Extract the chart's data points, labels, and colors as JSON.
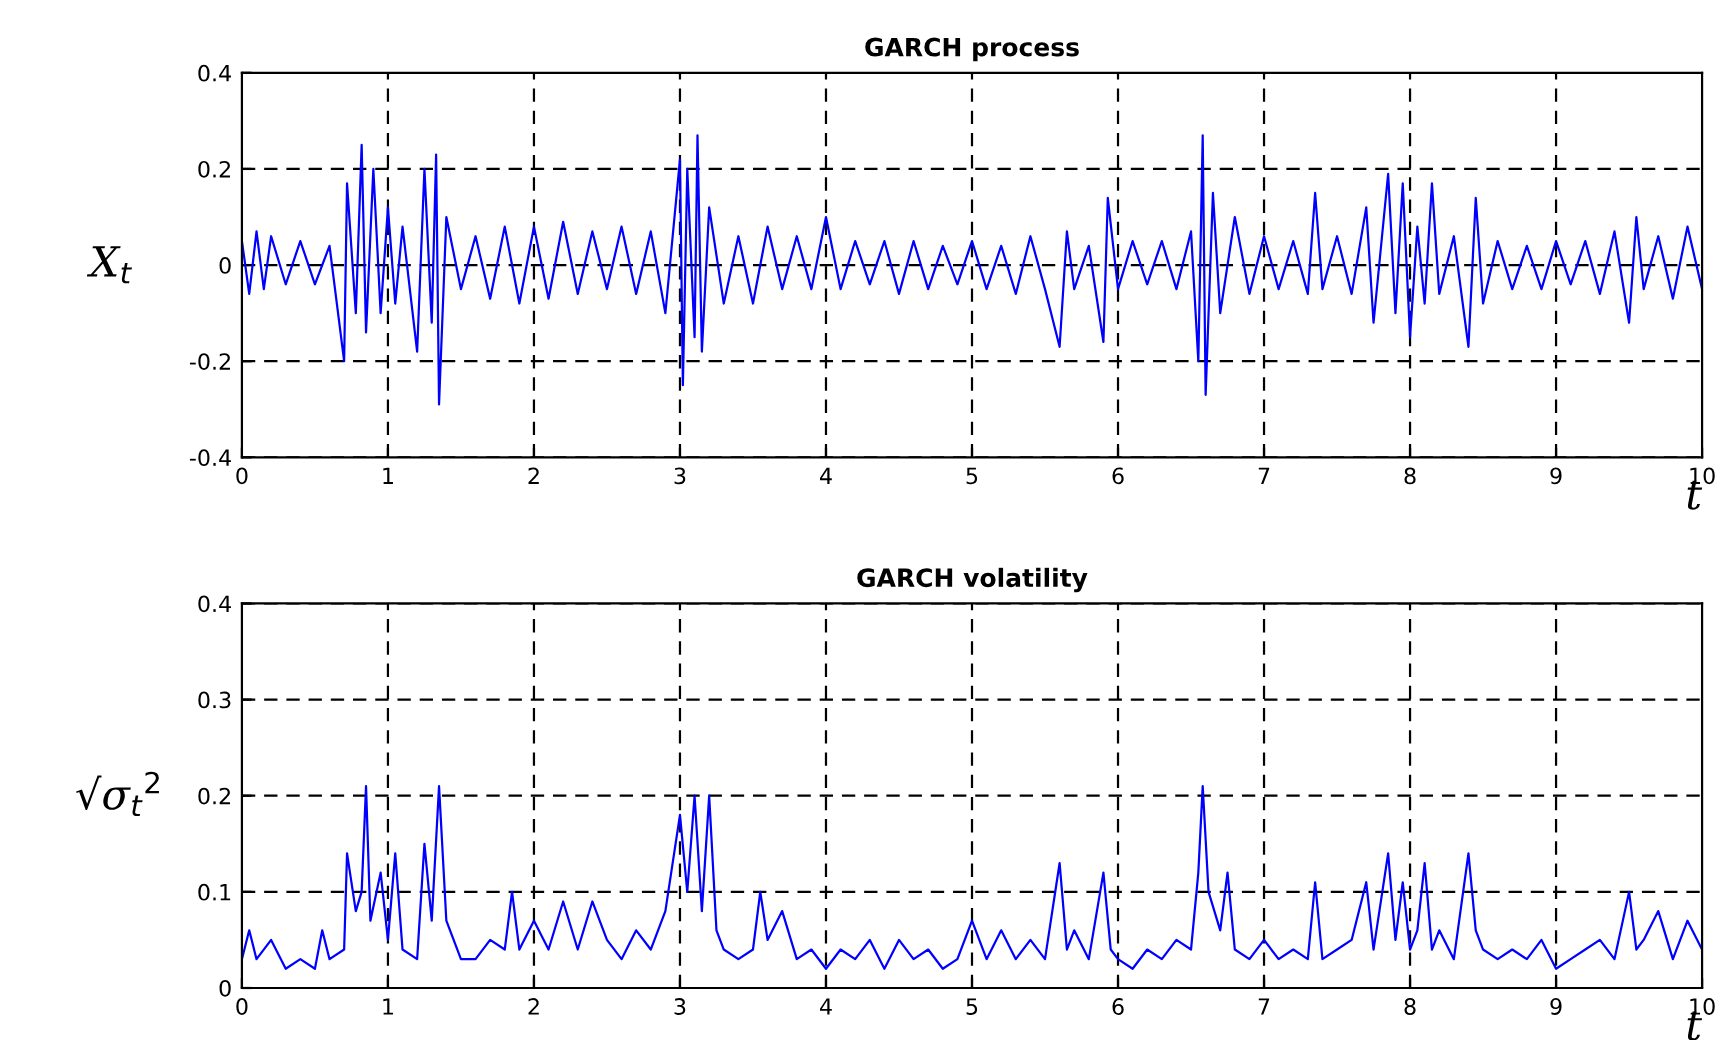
{
  "chart_data": [
    {
      "type": "line",
      "title": "GARCH process",
      "xlabel": "t",
      "ylabel": "X$_{t}$",
      "xlim": [
        0,
        10
      ],
      "xticks": [
        0,
        1,
        2,
        3,
        4,
        5,
        6,
        7,
        8,
        9,
        10
      ],
      "ylim": [
        -0.4,
        0.4
      ],
      "yticks": [
        -0.4,
        -0.2,
        0,
        0.2,
        0.4
      ],
      "grid": true,
      "line_style": "solid",
      "marker": "none",
      "series": [
        {
          "color": "#0000ff",
          "x": [
            0,
            0.05,
            0.1,
            0.15,
            0.2,
            0.3,
            0.4,
            0.5,
            0.6,
            0.7,
            0.72,
            0.78,
            0.82,
            0.85,
            0.9,
            0.95,
            1.0,
            1.05,
            1.1,
            1.2,
            1.25,
            1.3,
            1.33,
            1.35,
            1.4,
            1.5,
            1.6,
            1.7,
            1.8,
            1.9,
            2.0,
            2.1,
            2.2,
            2.3,
            2.4,
            2.5,
            2.6,
            2.7,
            2.8,
            2.9,
            3.0,
            3.02,
            3.05,
            3.1,
            3.12,
            3.15,
            3.2,
            3.3,
            3.4,
            3.5,
            3.6,
            3.7,
            3.8,
            3.9,
            4.0,
            4.1,
            4.2,
            4.3,
            4.4,
            4.5,
            4.6,
            4.7,
            4.8,
            4.9,
            5.0,
            5.1,
            5.2,
            5.3,
            5.4,
            5.5,
            5.6,
            5.65,
            5.7,
            5.8,
            5.9,
            5.93,
            6.0,
            6.1,
            6.2,
            6.3,
            6.4,
            6.5,
            6.55,
            6.58,
            6.6,
            6.65,
            6.7,
            6.8,
            6.9,
            7.0,
            7.1,
            7.2,
            7.3,
            7.35,
            7.4,
            7.5,
            7.6,
            7.7,
            7.75,
            7.85,
            7.9,
            7.95,
            8.0,
            8.05,
            8.1,
            8.15,
            8.2,
            8.3,
            8.4,
            8.45,
            8.5,
            8.6,
            8.7,
            8.8,
            8.9,
            9.0,
            9.1,
            9.2,
            9.3,
            9.4,
            9.5,
            9.55,
            9.6,
            9.7,
            9.8,
            9.9,
            10.0
          ],
          "values": [
            0.05,
            -0.06,
            0.07,
            -0.05,
            0.06,
            -0.04,
            0.05,
            -0.04,
            0.04,
            -0.2,
            0.17,
            -0.1,
            0.25,
            -0.14,
            0.2,
            -0.1,
            0.12,
            -0.08,
            0.08,
            -0.18,
            0.2,
            -0.12,
            0.23,
            -0.29,
            0.1,
            -0.05,
            0.06,
            -0.07,
            0.08,
            -0.08,
            0.08,
            -0.07,
            0.09,
            -0.06,
            0.07,
            -0.05,
            0.08,
            -0.06,
            0.07,
            -0.1,
            0.22,
            -0.25,
            0.2,
            -0.15,
            0.27,
            -0.18,
            0.12,
            -0.08,
            0.06,
            -0.08,
            0.08,
            -0.05,
            0.06,
            -0.05,
            0.1,
            -0.05,
            0.05,
            -0.04,
            0.05,
            -0.06,
            0.05,
            -0.05,
            0.04,
            -0.04,
            0.05,
            -0.05,
            0.04,
            -0.06,
            0.06,
            -0.05,
            -0.17,
            0.07,
            -0.05,
            0.04,
            -0.16,
            0.14,
            -0.05,
            0.05,
            -0.04,
            0.05,
            -0.05,
            0.07,
            -0.2,
            0.27,
            -0.27,
            0.15,
            -0.1,
            0.1,
            -0.06,
            0.06,
            -0.05,
            0.05,
            -0.06,
            0.15,
            -0.05,
            0.06,
            -0.06,
            0.12,
            -0.12,
            0.19,
            -0.1,
            0.17,
            -0.15,
            0.08,
            -0.08,
            0.17,
            -0.06,
            0.06,
            -0.17,
            0.14,
            -0.08,
            0.05,
            -0.05,
            0.04,
            -0.05,
            0.05,
            -0.04,
            0.05,
            -0.06,
            0.07,
            -0.12,
            0.1,
            -0.05,
            0.06,
            -0.07,
            0.08,
            -0.05
          ]
        }
      ]
    },
    {
      "type": "line",
      "title": "GARCH volatility",
      "xlabel": "t",
      "ylabel": "√σ$_{t}$$^{2}$",
      "xlim": [
        0,
        10
      ],
      "xticks": [
        0,
        1,
        2,
        3,
        4,
        5,
        6,
        7,
        8,
        9,
        10
      ],
      "ylim": [
        0,
        0.4
      ],
      "yticks": [
        0,
        0.1,
        0.2,
        0.3,
        0.4
      ],
      "grid": true,
      "line_style": "solid",
      "marker": "none",
      "series": [
        {
          "color": "#0000ff",
          "x": [
            0,
            0.05,
            0.1,
            0.2,
            0.3,
            0.4,
            0.5,
            0.55,
            0.6,
            0.7,
            0.72,
            0.78,
            0.82,
            0.85,
            0.88,
            0.95,
            1.0,
            1.05,
            1.1,
            1.2,
            1.25,
            1.3,
            1.35,
            1.4,
            1.5,
            1.6,
            1.7,
            1.8,
            1.85,
            1.9,
            2.0,
            2.1,
            2.2,
            2.3,
            2.4,
            2.5,
            2.6,
            2.7,
            2.8,
            2.9,
            3.0,
            3.05,
            3.1,
            3.15,
            3.2,
            3.25,
            3.3,
            3.4,
            3.5,
            3.55,
            3.6,
            3.7,
            3.8,
            3.9,
            4.0,
            4.1,
            4.2,
            4.3,
            4.4,
            4.5,
            4.6,
            4.7,
            4.8,
            4.9,
            5.0,
            5.1,
            5.2,
            5.3,
            5.4,
            5.5,
            5.6,
            5.65,
            5.7,
            5.8,
            5.9,
            5.95,
            6.0,
            6.1,
            6.2,
            6.3,
            6.4,
            6.5,
            6.55,
            6.58,
            6.62,
            6.7,
            6.75,
            6.8,
            6.9,
            7.0,
            7.1,
            7.2,
            7.3,
            7.35,
            7.4,
            7.5,
            7.6,
            7.7,
            7.75,
            7.85,
            7.9,
            7.95,
            8.0,
            8.05,
            8.1,
            8.15,
            8.2,
            8.3,
            8.4,
            8.45,
            8.5,
            8.6,
            8.7,
            8.8,
            8.9,
            9.0,
            9.1,
            9.2,
            9.3,
            9.4,
            9.5,
            9.55,
            9.6,
            9.7,
            9.8,
            9.9,
            10.0
          ],
          "values": [
            0.03,
            0.06,
            0.03,
            0.05,
            0.02,
            0.03,
            0.02,
            0.06,
            0.03,
            0.04,
            0.14,
            0.08,
            0.1,
            0.21,
            0.07,
            0.12,
            0.05,
            0.14,
            0.04,
            0.03,
            0.15,
            0.07,
            0.21,
            0.07,
            0.03,
            0.03,
            0.05,
            0.04,
            0.1,
            0.04,
            0.07,
            0.04,
            0.09,
            0.04,
            0.09,
            0.05,
            0.03,
            0.06,
            0.04,
            0.08,
            0.18,
            0.1,
            0.2,
            0.08,
            0.2,
            0.06,
            0.04,
            0.03,
            0.04,
            0.1,
            0.05,
            0.08,
            0.03,
            0.04,
            0.02,
            0.04,
            0.03,
            0.05,
            0.02,
            0.05,
            0.03,
            0.04,
            0.02,
            0.03,
            0.07,
            0.03,
            0.06,
            0.03,
            0.05,
            0.03,
            0.13,
            0.04,
            0.06,
            0.03,
            0.12,
            0.04,
            0.03,
            0.02,
            0.04,
            0.03,
            0.05,
            0.04,
            0.12,
            0.21,
            0.1,
            0.06,
            0.12,
            0.04,
            0.03,
            0.05,
            0.03,
            0.04,
            0.03,
            0.11,
            0.03,
            0.04,
            0.05,
            0.11,
            0.04,
            0.14,
            0.05,
            0.11,
            0.04,
            0.06,
            0.13,
            0.04,
            0.06,
            0.03,
            0.14,
            0.06,
            0.04,
            0.03,
            0.04,
            0.03,
            0.05,
            0.02,
            0.03,
            0.04,
            0.05,
            0.03,
            0.1,
            0.04,
            0.05,
            0.08,
            0.03,
            0.07,
            0.04
          ]
        }
      ]
    }
  ]
}
